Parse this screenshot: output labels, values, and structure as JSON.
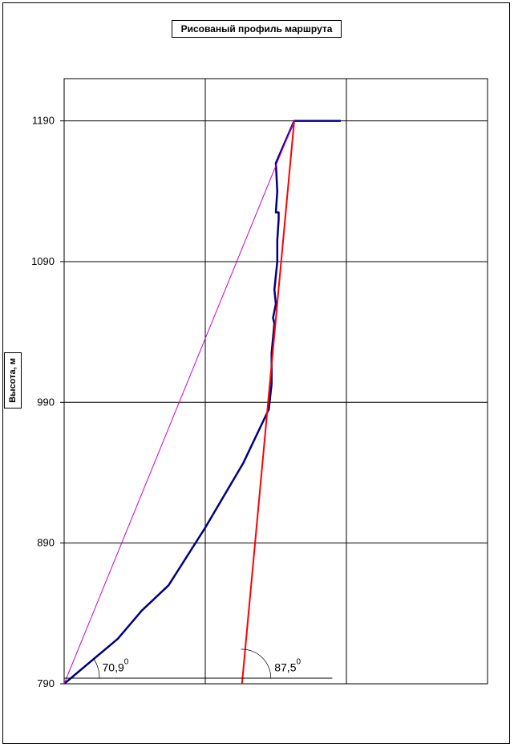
{
  "chart_data": {
    "type": "line",
    "title": "Рисованый профиль маршрута",
    "ylabel": "Высота, м",
    "xlabel": "",
    "xlim": [
      0,
      3
    ],
    "ylim": [
      790,
      1220
    ],
    "yticks": [
      "790",
      "890",
      "990",
      "1090",
      "1190"
    ],
    "ytick_values": [
      790,
      890,
      990,
      1090,
      1190
    ],
    "grid": true,
    "series": [
      {
        "color": "#000080",
        "x": [
          0,
          0.38,
          0.55,
          0.74,
          1.0,
          1.27,
          1.45,
          1.47,
          1.47,
          1.49,
          1.48,
          1.5,
          1.49,
          1.51,
          1.51,
          1.52,
          1.52,
          1.5,
          1.51,
          1.5,
          1.63,
          1.96
        ],
        "y": [
          790,
          822,
          842,
          860,
          901,
          947,
          985,
          1003,
          1025,
          1046,
          1050,
          1060,
          1070,
          1090,
          1105,
          1120,
          1125,
          1125,
          1140,
          1160,
          1190,
          1190
        ]
      },
      {
        "color": "#ff0000",
        "x": [
          1.26,
          1.63
        ],
        "y": [
          790,
          1190
        ]
      },
      {
        "color": "#cc00cc",
        "x": [
          0,
          1.63
        ],
        "y": [
          790,
          1190
        ]
      },
      {
        "color": "#000000",
        "x": [
          0,
          1.9
        ],
        "y": [
          794,
          794
        ]
      }
    ],
    "annotations": [
      {
        "text": "70,9",
        "sup": "0",
        "x": 0.27,
        "y": 800
      },
      {
        "text": "87,5",
        "sup": "0",
        "x": 1.49,
        "y": 800
      }
    ]
  }
}
